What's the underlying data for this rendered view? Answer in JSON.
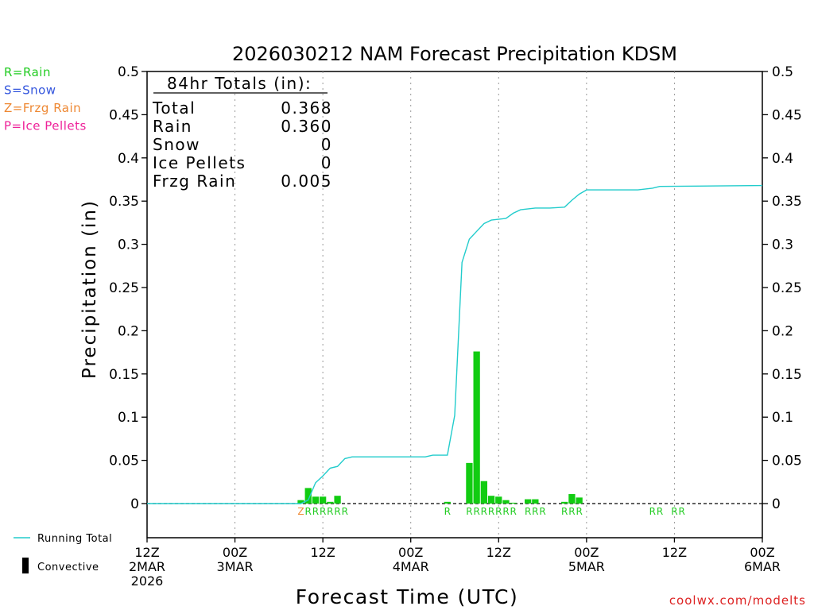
{
  "chart_data": {
    "type": "bar",
    "title": "2026030212 NAM Forecast Precipitation KDSM",
    "ylabel": "Precipitation (in)",
    "xlabel": "Forecast Time (UTC)",
    "ylim": [
      -0.04,
      0.5
    ],
    "xlim_hours": [
      0,
      84
    ],
    "y_ticks": [
      "0.5",
      "0.45",
      "0.4",
      "0.35",
      "0.3",
      "0.25",
      "0.2",
      "0.15",
      "0.1",
      "0.05",
      "0"
    ],
    "y_tick_values": [
      0.5,
      0.45,
      0.4,
      0.35,
      0.3,
      0.25,
      0.2,
      0.15,
      0.1,
      0.05,
      0
    ],
    "x_ticks": [
      {
        "hour": 0,
        "lines": [
          "12Z",
          "2MAR",
          "2026"
        ]
      },
      {
        "hour": 12,
        "lines": [
          "00Z",
          "3MAR"
        ]
      },
      {
        "hour": 24,
        "lines": [
          "12Z"
        ]
      },
      {
        "hour": 36,
        "lines": [
          "00Z",
          "4MAR"
        ]
      },
      {
        "hour": 48,
        "lines": [
          "12Z"
        ]
      },
      {
        "hour": 60,
        "lines": [
          "00Z",
          "5MAR"
        ]
      },
      {
        "hour": 72,
        "lines": [
          "12Z"
        ]
      },
      {
        "hour": 84,
        "lines": [
          "00Z",
          "6MAR"
        ]
      }
    ],
    "type_legend": [
      {
        "label": "R=Rain",
        "color": "#22cc22"
      },
      {
        "label": "S=Snow",
        "color": "#3355dd"
      },
      {
        "label": "Z=Frzg Rain",
        "color": "#ee8833"
      },
      {
        "label": "P=Ice Pellets",
        "color": "#ee2299"
      }
    ],
    "totals": {
      "heading": "84hr Totals (in):",
      "rows": [
        {
          "label": "Total",
          "value": "0.368"
        },
        {
          "label": "Rain",
          "value": "0.360"
        },
        {
          "label": "Snow",
          "value": "0"
        },
        {
          "label": "Ice Pellets",
          "value": "0"
        },
        {
          "label": "Frzg Rain",
          "value": "0.005"
        }
      ]
    },
    "series": [
      {
        "name": "Running Total",
        "type": "line",
        "color": "#22cccc",
        "x": [
          0,
          21,
          22,
          23,
          24,
          25,
          26,
          27,
          28,
          29,
          30,
          31,
          38,
          39,
          40,
          41,
          42,
          43,
          44,
          45,
          46,
          47,
          49,
          50,
          51,
          53,
          54,
          55,
          57,
          58,
          59,
          60,
          63,
          64,
          67,
          69,
          70,
          84
        ],
        "y": [
          0,
          0,
          0.004,
          0.024,
          0.032,
          0.041,
          0.043,
          0.052,
          0.054,
          0.054,
          0.054,
          0.054,
          0.054,
          0.056,
          0.056,
          0.056,
          0.102,
          0.279,
          0.306,
          0.315,
          0.324,
          0.328,
          0.33,
          0.336,
          0.34,
          0.342,
          0.342,
          0.342,
          0.343,
          0.351,
          0.358,
          0.363,
          0.363,
          0.363,
          0.363,
          0.365,
          0.367,
          0.368
        ]
      },
      {
        "name": "Precipitation",
        "type": "bar",
        "color": "#11cc11",
        "x": [
          21,
          22,
          23,
          24,
          25,
          26,
          41,
          44,
          45,
          46,
          47,
          48,
          49,
          50,
          52,
          53,
          57,
          58,
          59
        ],
        "y": [
          0.004,
          0.018,
          0.008,
          0.008,
          0.002,
          0.009,
          0.002,
          0.047,
          0.176,
          0.026,
          0.009,
          0.008,
          0.004,
          0.001,
          0.005,
          0.005,
          0.002,
          0.011,
          0.007
        ]
      }
    ],
    "type_codes": [
      {
        "hour": 21,
        "code": "Z",
        "color": "#ee8833"
      },
      {
        "hour": 22,
        "code": "R",
        "color": "#22cc22"
      },
      {
        "hour": 23,
        "code": "R",
        "color": "#22cc22"
      },
      {
        "hour": 24,
        "code": "R",
        "color": "#22cc22"
      },
      {
        "hour": 25,
        "code": "R",
        "color": "#22cc22"
      },
      {
        "hour": 26,
        "code": "R",
        "color": "#22cc22"
      },
      {
        "hour": 27,
        "code": "R",
        "color": "#22cc22"
      },
      {
        "hour": 41,
        "code": "R",
        "color": "#22cc22"
      },
      {
        "hour": 44,
        "code": "R",
        "color": "#22cc22"
      },
      {
        "hour": 45,
        "code": "R",
        "color": "#22cc22"
      },
      {
        "hour": 46,
        "code": "R",
        "color": "#22cc22"
      },
      {
        "hour": 47,
        "code": "R",
        "color": "#22cc22"
      },
      {
        "hour": 48,
        "code": "R",
        "color": "#22cc22"
      },
      {
        "hour": 49,
        "code": "R",
        "color": "#22cc22"
      },
      {
        "hour": 50,
        "code": "R",
        "color": "#22cc22"
      },
      {
        "hour": 52,
        "code": "R",
        "color": "#22cc22"
      },
      {
        "hour": 53,
        "code": "R",
        "color": "#22cc22"
      },
      {
        "hour": 54,
        "code": "R",
        "color": "#22cc22"
      },
      {
        "hour": 57,
        "code": "R",
        "color": "#22cc22"
      },
      {
        "hour": 58,
        "code": "R",
        "color": "#22cc22"
      },
      {
        "hour": 59,
        "code": "R",
        "color": "#22cc22"
      },
      {
        "hour": 69,
        "code": "R",
        "color": "#22cc22"
      },
      {
        "hour": 70,
        "code": "R",
        "color": "#22cc22"
      },
      {
        "hour": 72,
        "code": "R",
        "color": "#22cc22"
      },
      {
        "hour": 73,
        "code": "R",
        "color": "#22cc22"
      }
    ],
    "bottom_legend": [
      {
        "label": "Running Total",
        "marker": "line",
        "color": "#22cccc"
      },
      {
        "label": "Convective",
        "marker": "bar",
        "color": "#000000"
      }
    ],
    "grid": "vertical-dotted",
    "legend_placement": "left"
  },
  "credit": "coolwx.com/modelts",
  "colors": {
    "axis": "#000000",
    "grid": "#999999",
    "bar": "#11cc11",
    "line": "#22cccc",
    "credit": "#dd2222"
  }
}
